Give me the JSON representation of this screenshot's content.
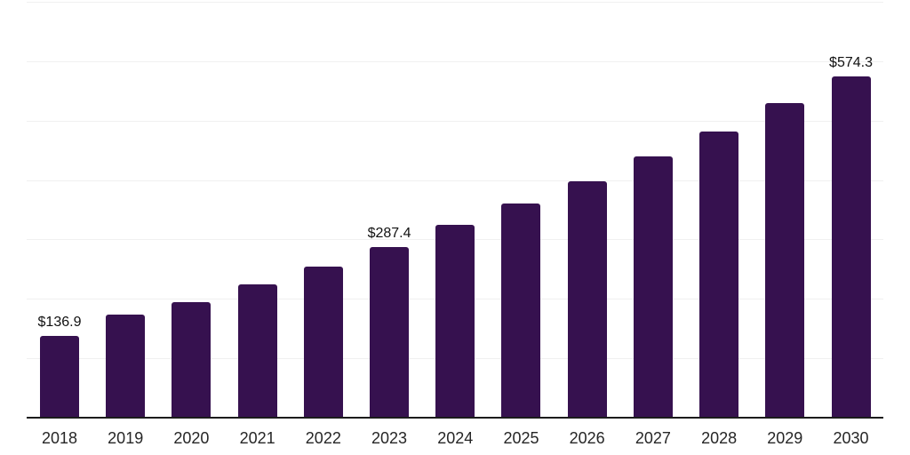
{
  "chart_data": {
    "type": "bar",
    "title": "",
    "xlabel": "",
    "ylabel": "",
    "categories": [
      "2018",
      "2019",
      "2020",
      "2021",
      "2022",
      "2023",
      "2024",
      "2025",
      "2026",
      "2027",
      "2028",
      "2029",
      "2030"
    ],
    "values": [
      136.9,
      172.9,
      193.7,
      225.1,
      253.8,
      287.4,
      323.9,
      359.8,
      398.6,
      439.0,
      482.0,
      529.5,
      574.3
    ],
    "value_labels": {
      "2018": "$136.9",
      "2023": "$287.4",
      "2030": "$574.3"
    },
    "ylim": [
      0,
      700
    ],
    "grid_step": 100,
    "grid": "horizontal",
    "y_tick_labels_visible": false,
    "legend": "none",
    "colors": {
      "bar": "#36114F",
      "axis_line": "#1c1c1c",
      "gridline": "#f0f0f0",
      "value_label_text": "#111111",
      "tick_label_text": "#262626",
      "background": "#ffffff"
    }
  }
}
